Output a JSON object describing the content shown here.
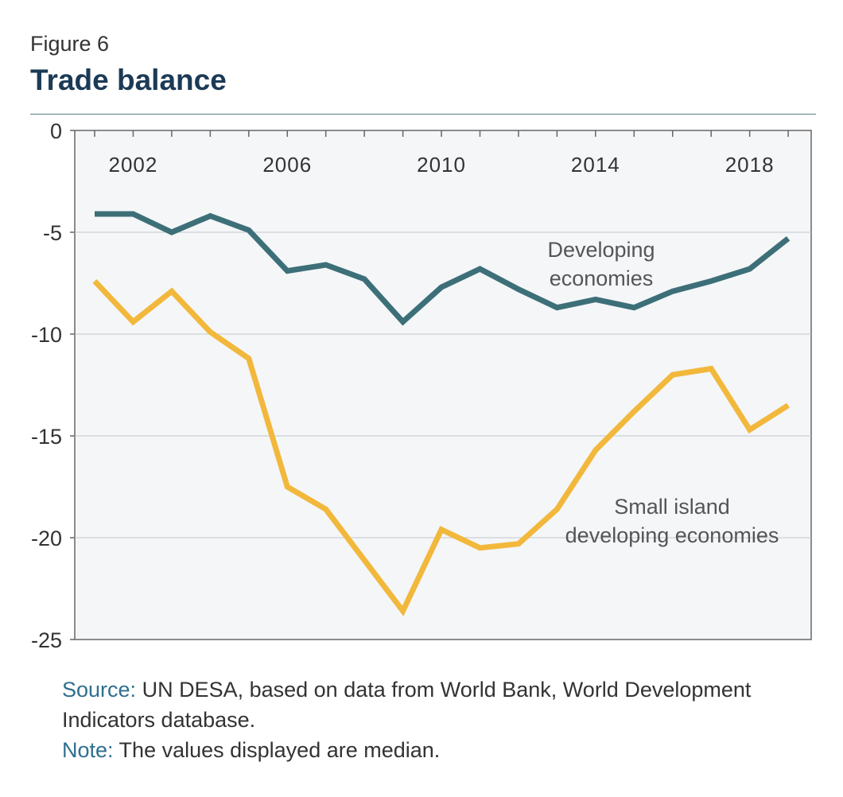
{
  "figure_label": "Figure 6",
  "figure_title": "Trade balance",
  "chart_data": {
    "type": "line",
    "x": [
      2001,
      2002,
      2003,
      2004,
      2005,
      2006,
      2007,
      2008,
      2009,
      2010,
      2011,
      2012,
      2013,
      2014,
      2015,
      2016,
      2017,
      2018,
      2019
    ],
    "x_tick_labels": [
      "2002",
      "2006",
      "2010",
      "2014",
      "2018"
    ],
    "y_tick_labels": [
      "0",
      "-5",
      "-10",
      "-15",
      "-20",
      "-25"
    ],
    "ylim": [
      -25,
      0
    ],
    "x_axis_position": "top",
    "grid": "horizontal",
    "series": [
      {
        "name": "Developing economies",
        "label_lines": [
          "Developing",
          "economies"
        ],
        "color": "#3d6f78",
        "values": [
          -4.1,
          -4.1,
          -5.0,
          -4.2,
          -4.9,
          -6.9,
          -6.6,
          -7.3,
          -9.4,
          -7.7,
          -6.8,
          -7.8,
          -8.7,
          -8.3,
          -8.7,
          -7.9,
          -7.4,
          -6.8,
          -5.3
        ]
      },
      {
        "name": "Small island developing economies",
        "label_lines": [
          "Small island",
          "developing economies"
        ],
        "color": "#f2b83c",
        "values": [
          -7.4,
          -9.4,
          -7.9,
          -9.9,
          -11.2,
          -17.5,
          -18.6,
          -21.1,
          -23.6,
          -19.6,
          -20.5,
          -20.3,
          -18.6,
          -15.7,
          -13.8,
          -12.0,
          -11.7,
          -14.7,
          -13.5
        ]
      }
    ]
  },
  "source": {
    "source_key": "Source:",
    "source_text": " UN DESA, based on data from World Bank, World Development",
    "source_text_2": "Indicators database.",
    "note_key": "Note:",
    "note_text": " The values displayed are median."
  }
}
